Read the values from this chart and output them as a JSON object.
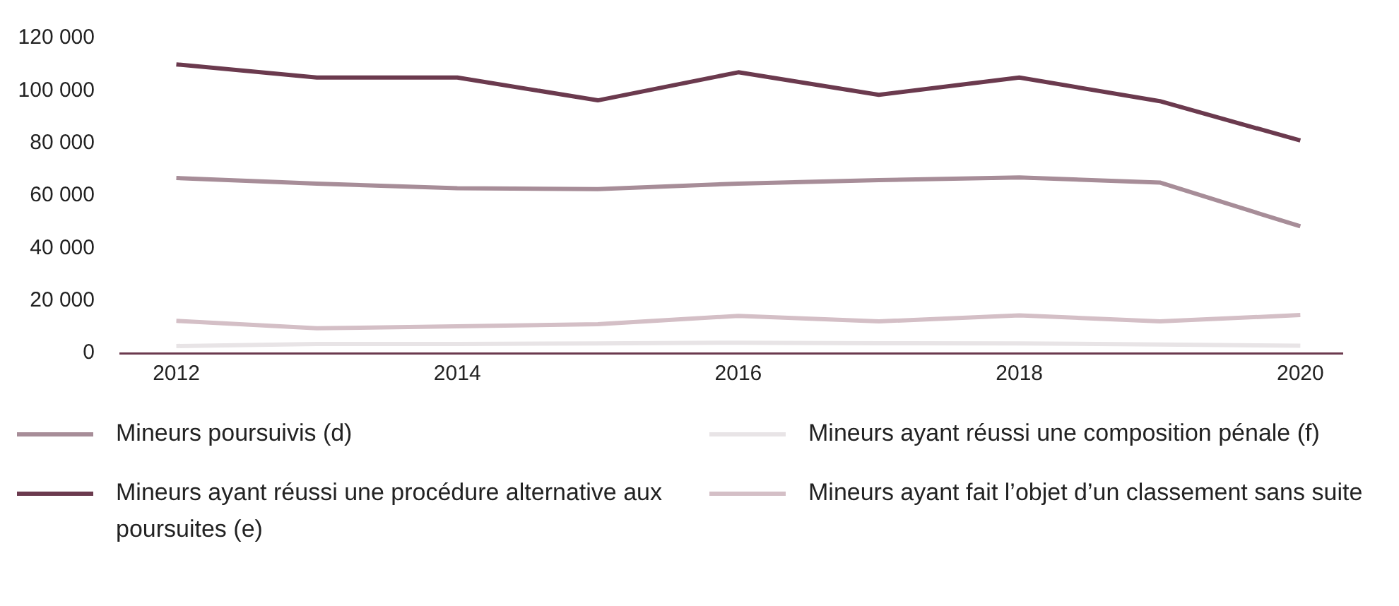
{
  "chart_data": {
    "type": "line",
    "x": [
      2012,
      2013,
      2014,
      2015,
      2016,
      2017,
      2018,
      2019,
      2020
    ],
    "xlim": [
      2011.6,
      2020.3
    ],
    "xticks": [
      2012,
      2014,
      2016,
      2018,
      2020
    ],
    "ylim": [
      0,
      120000
    ],
    "yticks": [
      {
        "value": 0,
        "label": "0"
      },
      {
        "value": 20000,
        "label": "20 000"
      },
      {
        "value": 40000,
        "label": "40 000"
      },
      {
        "value": 60000,
        "label": "60 000"
      },
      {
        "value": 80000,
        "label": "80 000"
      },
      {
        "value": 100000,
        "label": "100 000"
      },
      {
        "value": 120000,
        "label": "120 000"
      }
    ],
    "grid": false,
    "legend": "bottom",
    "marker": "none",
    "line_style": "solid",
    "series": [
      {
        "name": "Mineurs poursuivis (d)",
        "color": "#a78d98",
        "values": [
          66700,
          64600,
          62800,
          62500,
          64600,
          65900,
          66900,
          65000,
          48300
        ]
      },
      {
        "name": "Mineurs ayant réussi une procédure alternative aux poursuites (e)",
        "color": "#6b3a4e",
        "values": [
          110000,
          105000,
          105000,
          96300,
          107000,
          98400,
          105000,
          96000,
          81000
        ]
      },
      {
        "name": "Mineurs ayant réussi une composition pénale (f)",
        "color": "#e8e4e6",
        "values": [
          2700,
          3500,
          3500,
          3700,
          4000,
          3800,
          3700,
          3300,
          2800
        ]
      },
      {
        "name": "Mineurs ayant fait l’objet d’un classement sans suite",
        "color": "#d4bfc6",
        "values": [
          12300,
          9500,
          10200,
          11000,
          14200,
          12100,
          14400,
          12100,
          14500
        ]
      }
    ]
  }
}
